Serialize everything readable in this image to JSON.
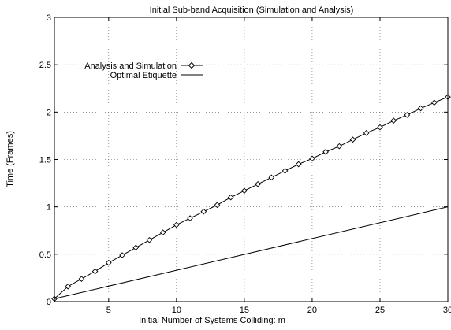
{
  "chart_data": {
    "type": "line",
    "title": "Initial Sub-band Acquisition (Simulation and Analysis)",
    "xlabel": "Initial Number of Systems Colliding: m",
    "ylabel": "Time (Frames)",
    "xlim": [
      1,
      30
    ],
    "ylim": [
      0,
      3
    ],
    "x_ticks": [
      5,
      10,
      15,
      20,
      25,
      30
    ],
    "y_ticks": [
      0,
      0.5,
      1,
      1.5,
      2,
      2.5,
      3
    ],
    "y_tick_labels": [
      "0",
      "0.5",
      "1",
      "1.5",
      "2",
      "2.5",
      "3"
    ],
    "grid": true,
    "legend_position": "top-left",
    "series": [
      {
        "name": "Analysis and Simulation",
        "style": "line-diamond",
        "x": [
          1,
          2,
          3,
          4,
          5,
          6,
          7,
          8,
          9,
          10,
          11,
          12,
          13,
          14,
          15,
          16,
          17,
          18,
          19,
          20,
          21,
          22,
          23,
          24,
          25,
          26,
          27,
          28,
          29,
          30
        ],
        "y": [
          0.03,
          0.16,
          0.24,
          0.32,
          0.41,
          0.49,
          0.57,
          0.65,
          0.73,
          0.81,
          0.88,
          0.95,
          1.02,
          1.1,
          1.17,
          1.24,
          1.31,
          1.38,
          1.45,
          1.51,
          1.58,
          1.64,
          1.71,
          1.78,
          1.84,
          1.91,
          1.97,
          2.04,
          2.1,
          2.16
        ]
      },
      {
        "name": "Optimal Etiquette",
        "style": "line",
        "x": [
          1,
          30
        ],
        "y": [
          0.03,
          1.0
        ]
      }
    ]
  }
}
